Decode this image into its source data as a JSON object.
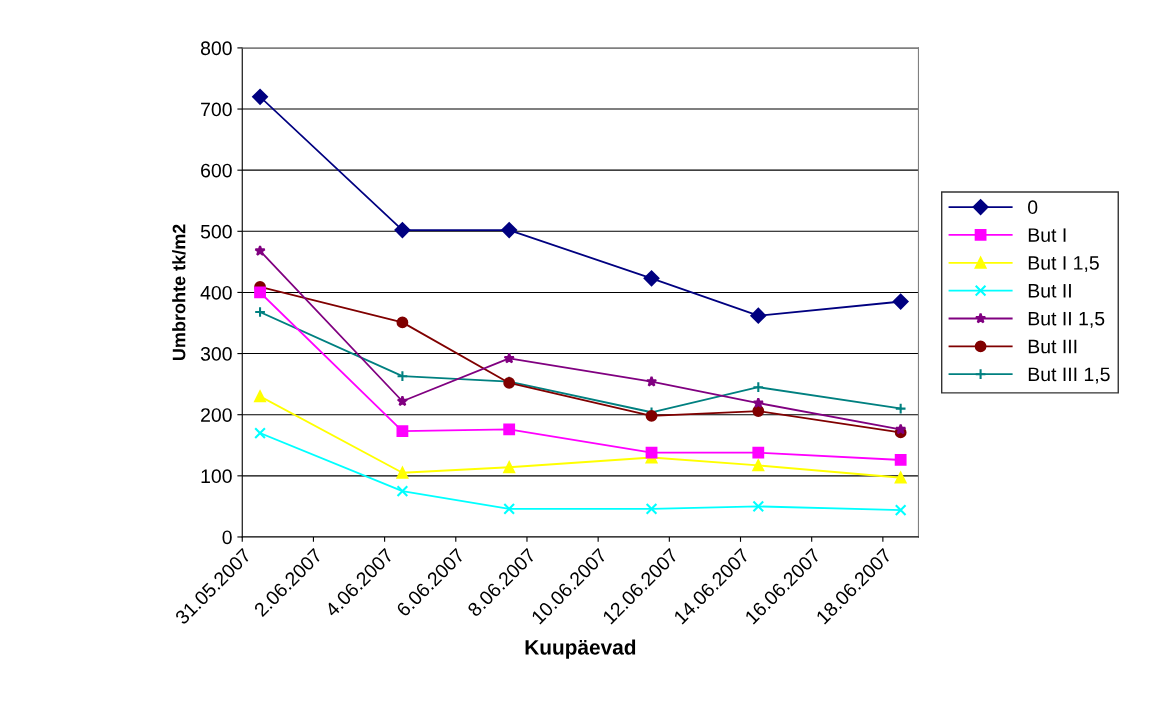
{
  "chart_data": {
    "type": "line",
    "xlabel": "Kuupäevad",
    "ylabel": "Umbrohte tk/m2",
    "x": [
      "2007-05-31T12:00",
      "2007-06-04T12:00",
      "2007-06-07T12:00",
      "2007-06-11T12:00",
      "2007-06-14T12:00",
      "2007-06-18T12:00"
    ],
    "xlim": [
      "2007-05-31",
      "2007-06-19"
    ],
    "xticks": [
      {
        "value": "2007-05-31",
        "label": "31.05.2007"
      },
      {
        "value": "2007-06-02",
        "label": "2.06.2007"
      },
      {
        "value": "2007-06-04",
        "label": "4.06.2007"
      },
      {
        "value": "2007-06-06",
        "label": "6.06.2007"
      },
      {
        "value": "2007-06-08",
        "label": "8.06.2007"
      },
      {
        "value": "2007-06-10",
        "label": "10.06.2007"
      },
      {
        "value": "2007-06-12",
        "label": "12.06.2007"
      },
      {
        "value": "2007-06-14",
        "label": "14.06.2007"
      },
      {
        "value": "2007-06-16",
        "label": "16.06.2007"
      },
      {
        "value": "2007-06-18",
        "label": "18.06.2007"
      }
    ],
    "ylim": [
      0,
      800
    ],
    "yticks": [
      0,
      100,
      200,
      300,
      400,
      500,
      600,
      700,
      800
    ],
    "grid": "y",
    "legend": "right",
    "series": [
      {
        "name": "0",
        "color": "#000080",
        "marker": "diamond",
        "values": [
          720,
          502,
          502,
          423,
          362,
          385
        ]
      },
      {
        "name": "But I",
        "color": "#ff00ff",
        "marker": "square",
        "values": [
          400,
          173,
          176,
          138,
          138,
          126
        ]
      },
      {
        "name": "But I 1,5",
        "color": "#ffff00",
        "marker": "triangle",
        "values": [
          230,
          105,
          114,
          130,
          117,
          97
        ]
      },
      {
        "name": "But II",
        "color": "#00ffff",
        "marker": "cross",
        "values": [
          170,
          75,
          46,
          46,
          50,
          44
        ]
      },
      {
        "name": "But II 1,5",
        "color": "#800080",
        "marker": "star",
        "values": [
          468,
          222,
          292,
          254,
          219,
          176
        ]
      },
      {
        "name": "But III",
        "color": "#800000",
        "marker": "circle",
        "values": [
          409,
          351,
          252,
          198,
          206,
          171
        ]
      },
      {
        "name": "But III 1,5",
        "color": "#008080",
        "marker": "plus",
        "values": [
          368,
          263,
          254,
          204,
          245,
          210
        ]
      }
    ]
  }
}
